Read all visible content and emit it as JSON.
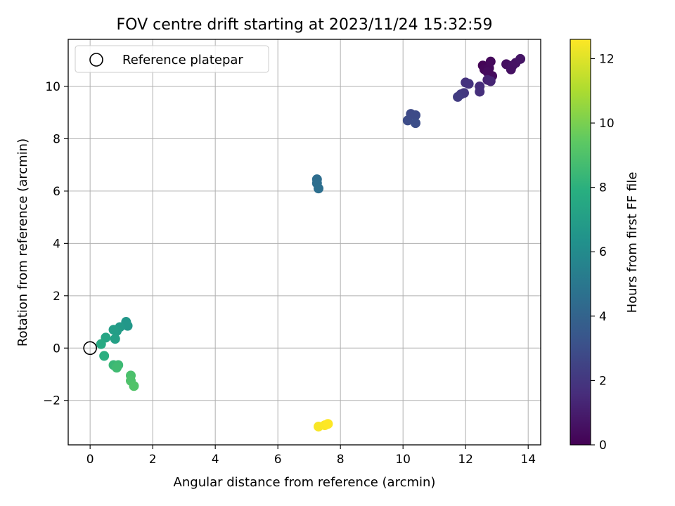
{
  "chart_data": {
    "type": "scatter",
    "title": "FOV centre drift starting at 2023/11/24 15:32:59",
    "xlabel": "Angular distance from reference (arcmin)",
    "ylabel": "Rotation from reference (arcmin)",
    "xlim": [
      -0.7,
      14.4
    ],
    "ylim": [
      -3.7,
      11.8
    ],
    "xticks": [
      0,
      2,
      4,
      6,
      8,
      10,
      12,
      14
    ],
    "yticks": [
      -2,
      0,
      2,
      4,
      6,
      8,
      10
    ],
    "grid": true,
    "legend": {
      "placement": "top-left",
      "entries": [
        "Reference platepar"
      ]
    },
    "reference_point": {
      "x": 0,
      "y": 0
    },
    "colorbar": {
      "label": "Hours from first FF file",
      "range": [
        0,
        12.6
      ],
      "ticks": [
        0,
        2,
        4,
        6,
        8,
        10,
        12
      ],
      "colormap": "viridis"
    },
    "points": [
      {
        "x": 12.55,
        "y": 10.8,
        "h": 0.1
      },
      {
        "x": 12.6,
        "y": 10.65,
        "h": 0.2
      },
      {
        "x": 12.75,
        "y": 10.7,
        "h": 0.25
      },
      {
        "x": 12.8,
        "y": 10.95,
        "h": 0.3
      },
      {
        "x": 12.85,
        "y": 10.4,
        "h": 0.4
      },
      {
        "x": 12.7,
        "y": 10.55,
        "h": 0.35
      },
      {
        "x": 13.3,
        "y": 10.85,
        "h": 0.5
      },
      {
        "x": 13.45,
        "y": 10.65,
        "h": 0.55
      },
      {
        "x": 13.5,
        "y": 10.8,
        "h": 0.6
      },
      {
        "x": 13.6,
        "y": 10.9,
        "h": 0.65
      },
      {
        "x": 13.75,
        "y": 11.05,
        "h": 0.7
      },
      {
        "x": 12.7,
        "y": 10.25,
        "h": 1.2
      },
      {
        "x": 12.8,
        "y": 10.2,
        "h": 1.3
      },
      {
        "x": 12.45,
        "y": 10.0,
        "h": 1.6
      },
      {
        "x": 12.45,
        "y": 9.8,
        "h": 1.7
      },
      {
        "x": 12.0,
        "y": 10.15,
        "h": 1.8
      },
      {
        "x": 12.1,
        "y": 10.1,
        "h": 1.85
      },
      {
        "x": 11.95,
        "y": 9.75,
        "h": 2.0
      },
      {
        "x": 11.85,
        "y": 9.7,
        "h": 2.1
      },
      {
        "x": 11.75,
        "y": 9.6,
        "h": 2.2
      },
      {
        "x": 10.25,
        "y": 8.95,
        "h": 2.8
      },
      {
        "x": 10.4,
        "y": 8.9,
        "h": 2.85
      },
      {
        "x": 10.15,
        "y": 8.7,
        "h": 2.9
      },
      {
        "x": 10.4,
        "y": 8.6,
        "h": 3.0
      },
      {
        "x": 7.25,
        "y": 6.45,
        "h": 4.5
      },
      {
        "x": 7.25,
        "y": 6.3,
        "h": 4.55
      },
      {
        "x": 7.3,
        "y": 6.1,
        "h": 4.6
      },
      {
        "x": 1.15,
        "y": 1.0,
        "h": 6.6
      },
      {
        "x": 1.2,
        "y": 0.85,
        "h": 6.65
      },
      {
        "x": 0.95,
        "y": 0.8,
        "h": 6.8
      },
      {
        "x": 0.85,
        "y": 0.65,
        "h": 6.9
      },
      {
        "x": 0.75,
        "y": 0.7,
        "h": 7.0
      },
      {
        "x": 0.8,
        "y": 0.35,
        "h": 7.1
      },
      {
        "x": 0.5,
        "y": 0.4,
        "h": 7.4
      },
      {
        "x": 0.35,
        "y": 0.15,
        "h": 7.6
      },
      {
        "x": 0.45,
        "y": -0.3,
        "h": 7.9
      },
      {
        "x": 0.75,
        "y": -0.65,
        "h": 8.4
      },
      {
        "x": 0.9,
        "y": -0.65,
        "h": 8.5
      },
      {
        "x": 0.85,
        "y": -0.75,
        "h": 8.6
      },
      {
        "x": 1.3,
        "y": -1.05,
        "h": 8.9
      },
      {
        "x": 1.3,
        "y": -1.25,
        "h": 9.0
      },
      {
        "x": 1.4,
        "y": -1.45,
        "h": 9.1
      },
      {
        "x": 7.3,
        "y": -3.0,
        "h": 12.5
      },
      {
        "x": 7.5,
        "y": -2.95,
        "h": 12.55
      },
      {
        "x": 7.6,
        "y": -2.9,
        "h": 12.6
      }
    ]
  }
}
